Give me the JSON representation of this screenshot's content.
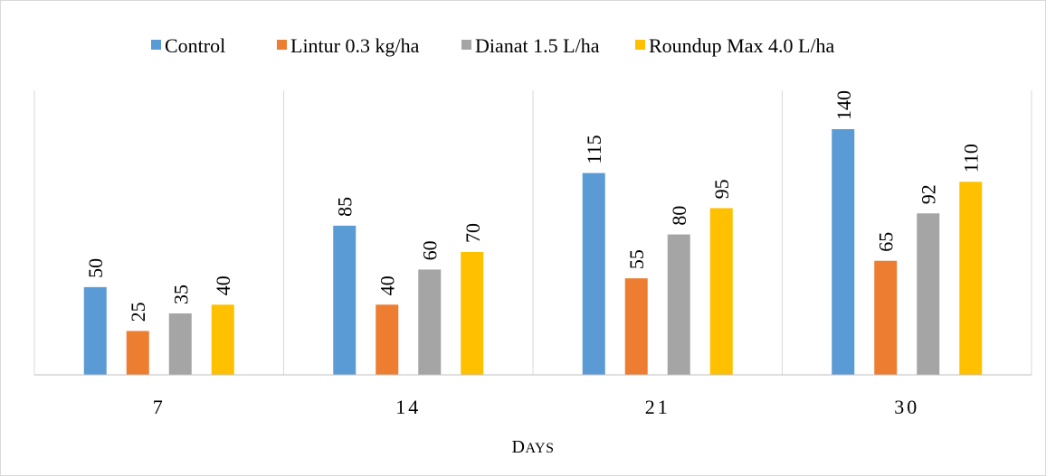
{
  "chart_data": {
    "type": "bar",
    "categories": [
      "7",
      "14",
      "21",
      "30"
    ],
    "xlabel": "Days",
    "ylabel": "",
    "ylim": [
      0,
      140
    ],
    "grid": "vertical-category-separators",
    "legend_position": "top",
    "series": [
      {
        "name": "Control",
        "color": "#5b9bd5",
        "values": [
          50,
          85,
          115,
          140
        ]
      },
      {
        "name": "Lintur 0.3 kg/ha",
        "color": "#ed7d31",
        "values": [
          25,
          40,
          55,
          65
        ]
      },
      {
        "name": "Dianat 1.5 L/ha",
        "color": "#a5a5a5",
        "values": [
          35,
          60,
          80,
          92
        ]
      },
      {
        "name": "Roundup Max 4.0 L/ha",
        "color": "#ffc000",
        "values": [
          40,
          70,
          95,
          110
        ]
      }
    ]
  }
}
